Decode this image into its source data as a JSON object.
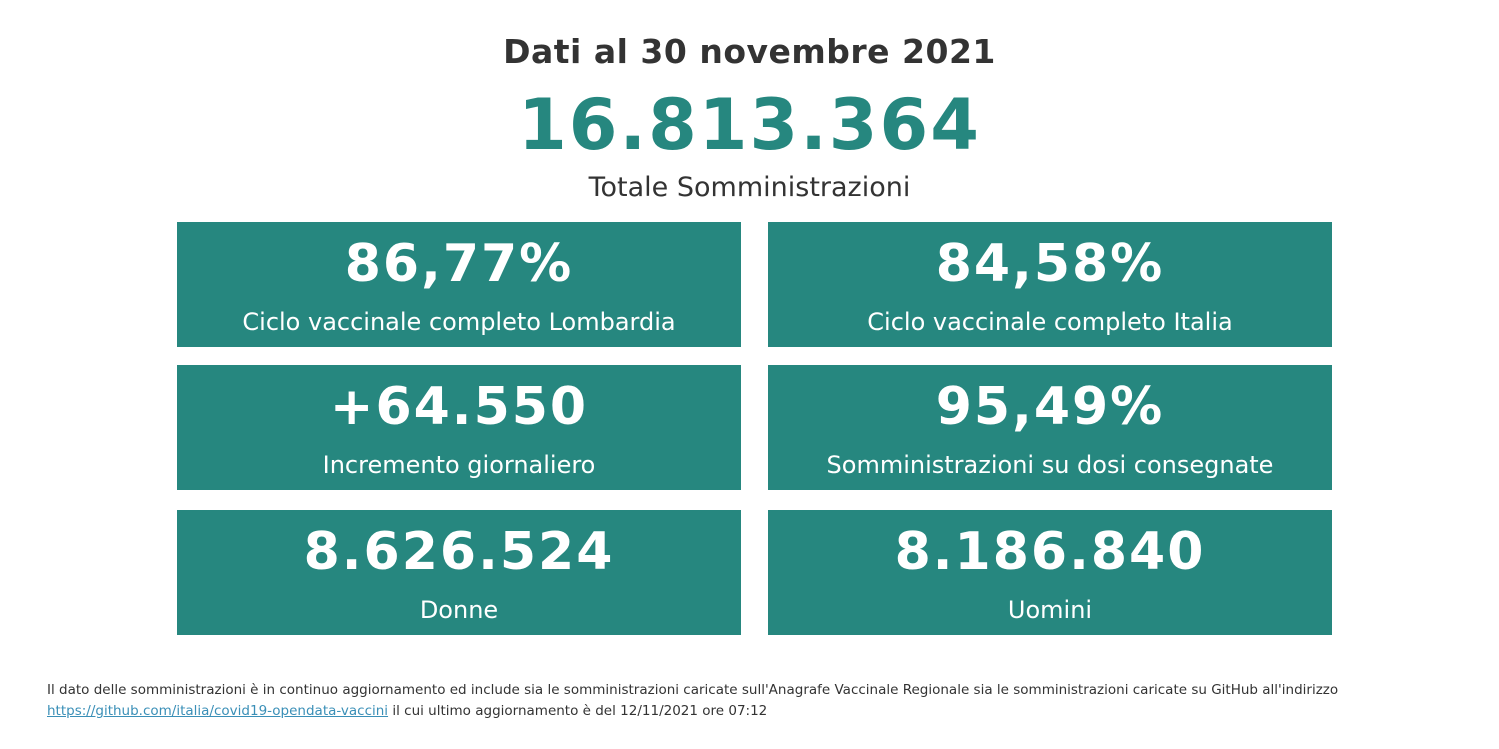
{
  "header": {
    "date_title": "Dati al 30 novembre 2021",
    "total_value": "16.813.364",
    "total_label": "Totale Somministrazioni"
  },
  "cards": [
    {
      "value": "86,77%",
      "label": "Ciclo vaccinale completo Lombardia"
    },
    {
      "value": "84,58%",
      "label": "Ciclo vaccinale completo Italia"
    },
    {
      "value": "+64.550",
      "label": "Incremento giornaliero"
    },
    {
      "value": "95,49%",
      "label": "Somministrazioni su dosi consegnate"
    },
    {
      "value": "8.626.524",
      "label": "Donne"
    },
    {
      "value": "8.186.840",
      "label": "Uomini"
    }
  ],
  "footer": {
    "text_before": "Il dato delle somministrazioni è in continuo aggiornamento ed include sia le somministrazioni caricate sull'Anagrafe Vaccinale Regionale sia le somministrazioni caricate su GitHub all'indirizzo",
    "link_text": "https://github.com/italia/covid19-opendata-vaccini",
    "link_href": "https://github.com/italia/covid19-opendata-vaccini",
    "text_after": "il cui ultimo aggiornamento è del 12/11/2021 ore 07:12"
  },
  "colors": {
    "accent": "#26877f",
    "text": "#333333",
    "link": "#3a8fb7"
  }
}
